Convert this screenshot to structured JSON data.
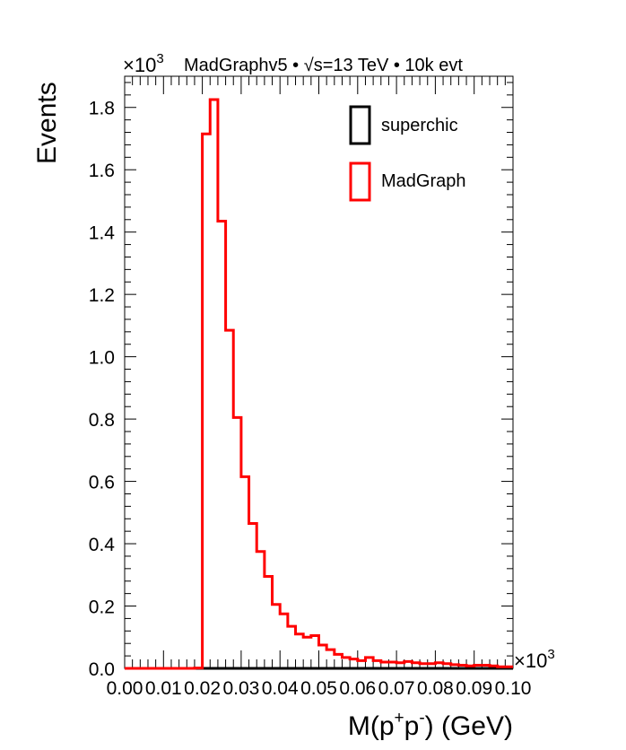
{
  "chart_data": {
    "type": "histogram",
    "title": "MadGraphv5 • √s=13 TeV • 10k evt",
    "title_parts": {
      "generator": "MadGraphv5 •",
      "sqrt": "√",
      "energy": "s=13 TeV • 10k evt"
    },
    "xlabel": "M(p⁺p⁻) (GeV)",
    "xlabel_parts": {
      "pre": "M(p",
      "sup1": "+",
      "mid": "p",
      "sup2": "-",
      "post": ") (GeV)"
    },
    "ylabel": "Events",
    "x_multiplier": "×10³",
    "y_multiplier": "×10³",
    "multiplier_parts": {
      "base": "×10",
      "exp": "3"
    },
    "xlim": [
      0.0,
      0.1
    ],
    "ylim": [
      0.0,
      1.9
    ],
    "x_ticks": [
      "0.00",
      "0.01",
      "0.02",
      "0.03",
      "0.04",
      "0.05",
      "0.06",
      "0.07",
      "0.08",
      "0.09",
      "0.10"
    ],
    "y_ticks": [
      "0.0",
      "0.2",
      "0.4",
      "0.6",
      "0.8",
      "1.0",
      "1.2",
      "1.4",
      "1.6",
      "1.8"
    ],
    "bin_width": 0.002,
    "x_bin_edges_start": 0.0,
    "legend": {
      "placement": "top-right",
      "entries": [
        {
          "name": "superchic",
          "color": "#000000"
        },
        {
          "name": "MadGraph",
          "color": "#ff0000"
        }
      ]
    },
    "series": [
      {
        "name": "superchic",
        "color": "#000000",
        "values": [
          0,
          0,
          0,
          0,
          0,
          0,
          0,
          0,
          0,
          0,
          0,
          0,
          0,
          0,
          0,
          0,
          0,
          0,
          0,
          0,
          0,
          0,
          0,
          0,
          0,
          0,
          0,
          0,
          0,
          0,
          0,
          0,
          0,
          0,
          0,
          0,
          0,
          0,
          0,
          0,
          0,
          0,
          0,
          0,
          0,
          0,
          0,
          0,
          0,
          0
        ]
      },
      {
        "name": "MadGraph",
        "color": "#ff0000",
        "values": [
          0,
          0,
          0,
          0,
          0,
          0,
          0,
          0,
          0,
          0.001,
          1.715,
          1.825,
          1.435,
          1.085,
          0.805,
          0.615,
          0.465,
          0.375,
          0.295,
          0.205,
          0.175,
          0.135,
          0.11,
          0.1,
          0.105,
          0.075,
          0.06,
          0.045,
          0.035,
          0.03,
          0.025,
          0.035,
          0.025,
          0.02,
          0.02,
          0.018,
          0.022,
          0.018,
          0.015,
          0.015,
          0.018,
          0.015,
          0.012,
          0.01,
          0.008,
          0.01,
          0.01,
          0.008,
          0.005,
          0.005
        ]
      }
    ]
  }
}
